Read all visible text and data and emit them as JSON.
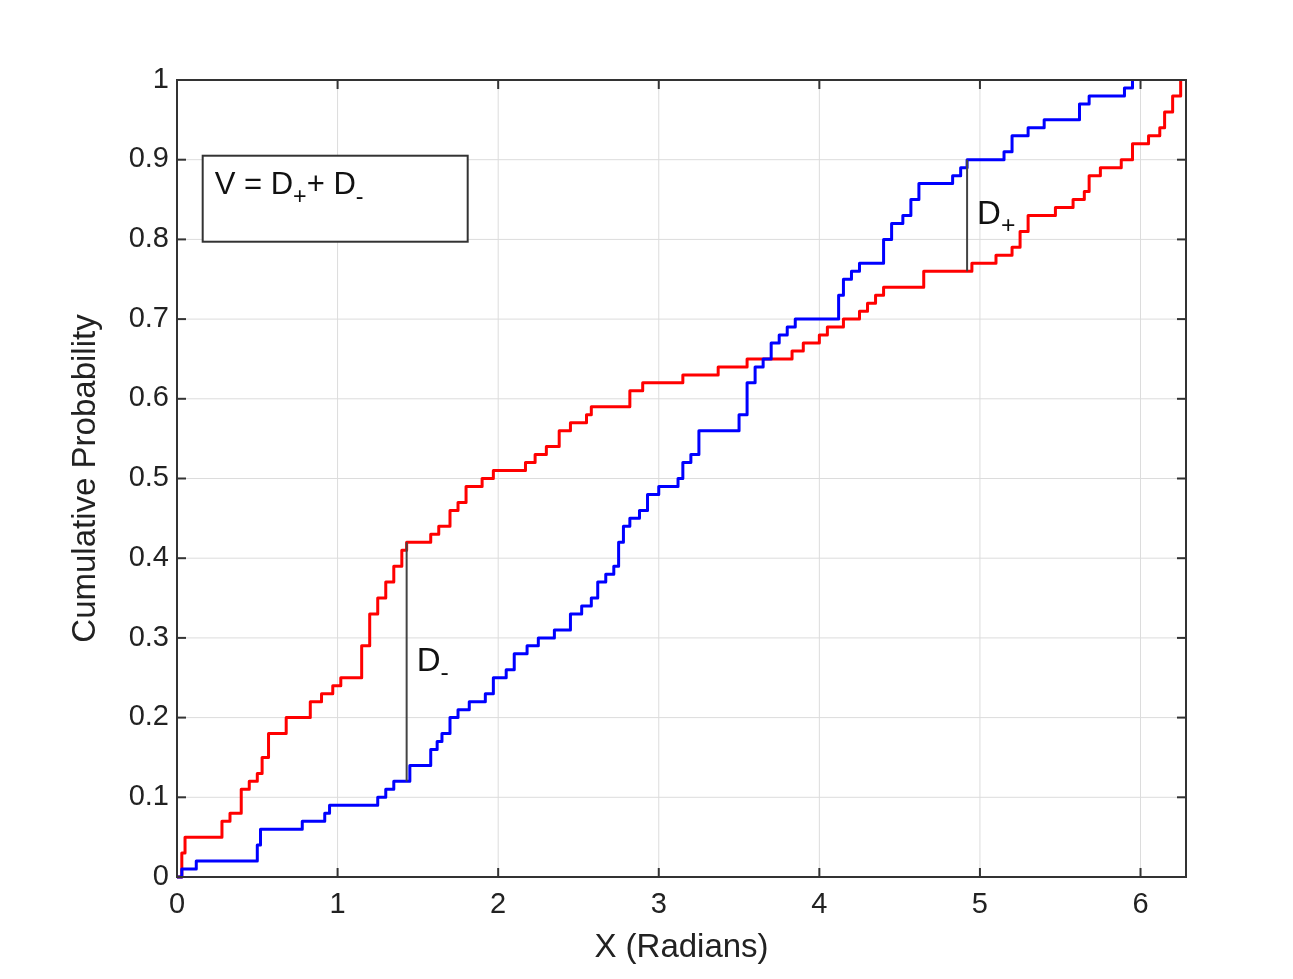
{
  "chart_data": {
    "type": "step",
    "xlabel": "X (Radians)",
    "ylabel": "Cumulative Probability",
    "xlim": [
      0,
      6.2832
    ],
    "xticks": [
      0,
      1,
      2,
      3,
      4,
      5,
      6
    ],
    "ylim": [
      0,
      1
    ],
    "yticks": [
      0,
      0.1,
      0.2,
      0.3,
      0.4,
      0.5,
      0.6,
      0.7,
      0.8,
      0.9,
      1
    ],
    "grid": true,
    "annotations": [
      "V = D$_{+}$+ D$_{-}$",
      "D$_{-}$",
      "D$_{+}$"
    ],
    "series": [
      {
        "color": "#ff0000",
        "x": [
          0,
          0.03,
          0.05,
          0.25,
          0.28,
          0.33,
          0.38,
          0.4,
          0.45,
          0.5,
          0.53,
          0.57,
          0.65,
          0.68,
          0.8,
          0.83,
          0.9,
          0.97,
          1.02,
          1.1,
          1.15,
          1.2,
          1.25,
          1.3,
          1.35,
          1.4,
          1.43,
          1.53,
          1.58,
          1.63,
          1.7,
          1.75,
          1.8,
          1.9,
          1.97,
          2.13,
          2.17,
          2.23,
          2.3,
          2.38,
          2.45,
          2.55,
          2.58,
          2.78,
          2.82,
          2.9,
          3.12,
          3.15,
          3.33,
          3.37,
          3.52,
          3.55,
          3.8,
          3.83,
          3.9,
          4.0,
          4.05,
          4.15,
          4.25,
          4.3,
          4.35,
          4.4,
          4.62,
          4.65,
          4.92,
          4.95,
          5.1,
          5.2,
          5.25,
          5.3,
          5.42,
          5.47,
          5.58,
          5.65,
          5.68,
          5.75,
          5.85,
          5.88,
          5.95,
          6.05,
          6.12,
          6.15,
          6.2,
          6.25
        ],
        "values": [
          0,
          0.03,
          0.05,
          0.05,
          0.07,
          0.08,
          0.08,
          0.11,
          0.12,
          0.13,
          0.15,
          0.18,
          0.18,
          0.2,
          0.2,
          0.22,
          0.23,
          0.24,
          0.25,
          0.25,
          0.29,
          0.33,
          0.35,
          0.37,
          0.39,
          0.41,
          0.42,
          0.42,
          0.43,
          0.44,
          0.46,
          0.47,
          0.49,
          0.5,
          0.51,
          0.51,
          0.52,
          0.53,
          0.54,
          0.56,
          0.57,
          0.58,
          0.59,
          0.59,
          0.61,
          0.62,
          0.62,
          0.63,
          0.63,
          0.64,
          0.64,
          0.65,
          0.65,
          0.66,
          0.67,
          0.68,
          0.69,
          0.7,
          0.71,
          0.72,
          0.73,
          0.74,
          0.74,
          0.76,
          0.76,
          0.77,
          0.78,
          0.79,
          0.81,
          0.83,
          0.83,
          0.84,
          0.85,
          0.86,
          0.88,
          0.89,
          0.89,
          0.9,
          0.92,
          0.93,
          0.94,
          0.96,
          0.98,
          1.0
        ]
      },
      {
        "color": "#0000ff",
        "x": [
          0,
          0.03,
          0.1,
          0.12,
          0.45,
          0.5,
          0.52,
          0.75,
          0.78,
          0.88,
          0.92,
          0.95,
          1.22,
          1.25,
          1.3,
          1.35,
          1.42,
          1.45,
          1.55,
          1.58,
          1.62,
          1.65,
          1.7,
          1.75,
          1.82,
          1.92,
          1.97,
          2.05,
          2.1,
          2.18,
          2.25,
          2.35,
          2.45,
          2.52,
          2.58,
          2.62,
          2.67,
          2.72,
          2.75,
          2.78,
          2.82,
          2.88,
          2.93,
          3.0,
          3.08,
          3.12,
          3.15,
          3.2,
          3.25,
          3.45,
          3.5,
          3.55,
          3.6,
          3.65,
          3.7,
          3.75,
          3.8,
          3.85,
          4.1,
          4.12,
          4.15,
          4.2,
          4.25,
          4.38,
          4.4,
          4.45,
          4.52,
          4.57,
          4.62,
          4.8,
          4.83,
          4.88,
          4.92,
          5.12,
          5.15,
          5.2,
          5.3,
          5.4,
          5.6,
          5.62,
          5.68,
          5.85,
          5.9,
          5.95
        ],
        "values": [
          0,
          0.01,
          0.01,
          0.02,
          0.02,
          0.04,
          0.06,
          0.06,
          0.07,
          0.07,
          0.08,
          0.09,
          0.09,
          0.1,
          0.11,
          0.12,
          0.12,
          0.14,
          0.14,
          0.16,
          0.17,
          0.18,
          0.2,
          0.21,
          0.22,
          0.23,
          0.25,
          0.26,
          0.28,
          0.29,
          0.3,
          0.31,
          0.33,
          0.34,
          0.35,
          0.37,
          0.38,
          0.39,
          0.42,
          0.44,
          0.45,
          0.46,
          0.48,
          0.49,
          0.49,
          0.5,
          0.52,
          0.53,
          0.56,
          0.56,
          0.58,
          0.62,
          0.64,
          0.65,
          0.67,
          0.68,
          0.69,
          0.7,
          0.7,
          0.73,
          0.75,
          0.76,
          0.77,
          0.77,
          0.8,
          0.82,
          0.83,
          0.85,
          0.87,
          0.87,
          0.88,
          0.89,
          0.9,
          0.9,
          0.91,
          0.93,
          0.94,
          0.95,
          0.95,
          0.97,
          0.98,
          0.98,
          0.99,
          1.0
        ]
      }
    ]
  }
}
